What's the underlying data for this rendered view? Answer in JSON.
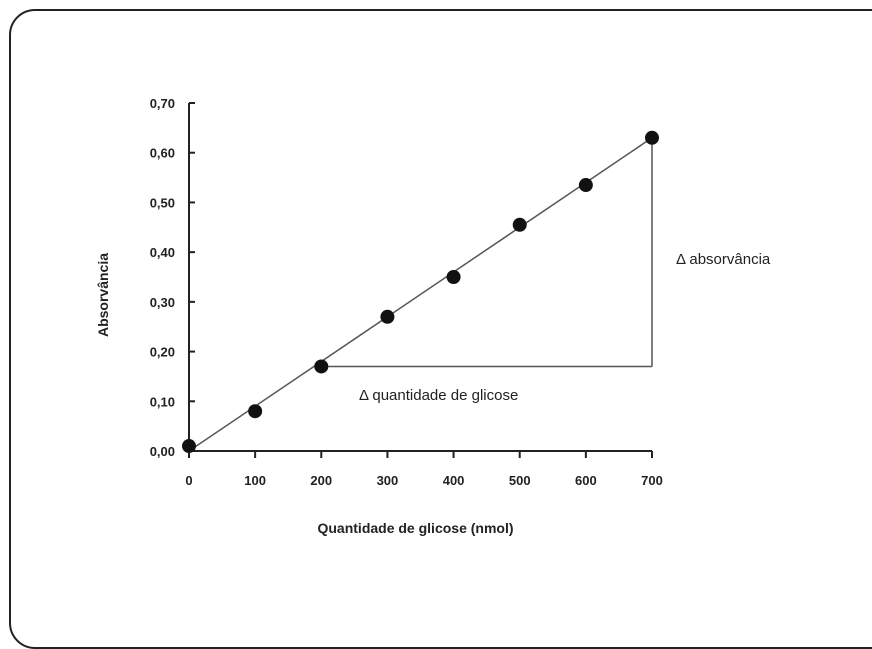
{
  "chart_data": {
    "type": "scatter",
    "title": "",
    "xlabel": "Quantidade de glicose (nmol)",
    "ylabel": "Absorvância",
    "xlim": [
      0,
      700
    ],
    "ylim": [
      0,
      0.7
    ],
    "x_ticks": [
      0,
      100,
      200,
      300,
      400,
      500,
      600,
      700
    ],
    "x_tick_labels": [
      "0",
      "100",
      "200",
      "300",
      "400",
      "500",
      "600",
      "700"
    ],
    "y_ticks": [
      0,
      0.1,
      0.2,
      0.3,
      0.4,
      0.5,
      0.6,
      0.7
    ],
    "y_tick_labels": [
      "0,00",
      "0,10",
      "0,20",
      "0,30",
      "0,40",
      "0,50",
      "0,60",
      "0,70"
    ],
    "grid": false,
    "legend": "none",
    "series": [
      {
        "x": [
          0,
          100,
          200,
          300,
          400,
          500,
          600,
          700
        ],
        "values": [
          0.01,
          0.08,
          0.17,
          0.27,
          0.35,
          0.455,
          0.535,
          0.63
        ]
      }
    ],
    "trendline": {
      "x": [
        0,
        700
      ],
      "y": [
        0.0,
        0.63
      ]
    },
    "annotations": {
      "delta_x_label": "Δ quantidade de glicose",
      "delta_y_label": "Δ absorvância",
      "triangle": {
        "x_from": 200,
        "x_to": 700,
        "y_from": 0.17,
        "y_to": 0.63
      }
    },
    "colors": {
      "points": "#111111",
      "line": "#555555",
      "axis": "#222222"
    }
  }
}
